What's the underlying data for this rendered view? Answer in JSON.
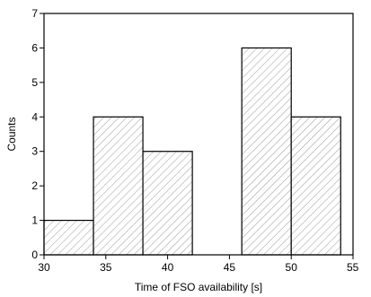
{
  "chart_data": {
    "type": "bar",
    "title": "",
    "xlabel": "Time of FSO availability [s]",
    "ylabel": "Counts",
    "xlim": [
      30,
      55
    ],
    "ylim": [
      0,
      7
    ],
    "xticks": [
      30,
      35,
      40,
      45,
      50,
      55
    ],
    "yticks": [
      0,
      1,
      2,
      3,
      4,
      5,
      6,
      7
    ],
    "bins": [
      {
        "x0": 30,
        "x1": 34,
        "count": 1
      },
      {
        "x0": 34,
        "x1": 38,
        "count": 4
      },
      {
        "x0": 38,
        "x1": 42,
        "count": 3
      },
      {
        "x0": 46,
        "x1": 50,
        "count": 6
      },
      {
        "x0": 50,
        "x1": 54,
        "count": 4
      }
    ],
    "bar_fill": "hatched",
    "hatch_color": "#999999",
    "edge_color": "#000000",
    "grid": false
  }
}
